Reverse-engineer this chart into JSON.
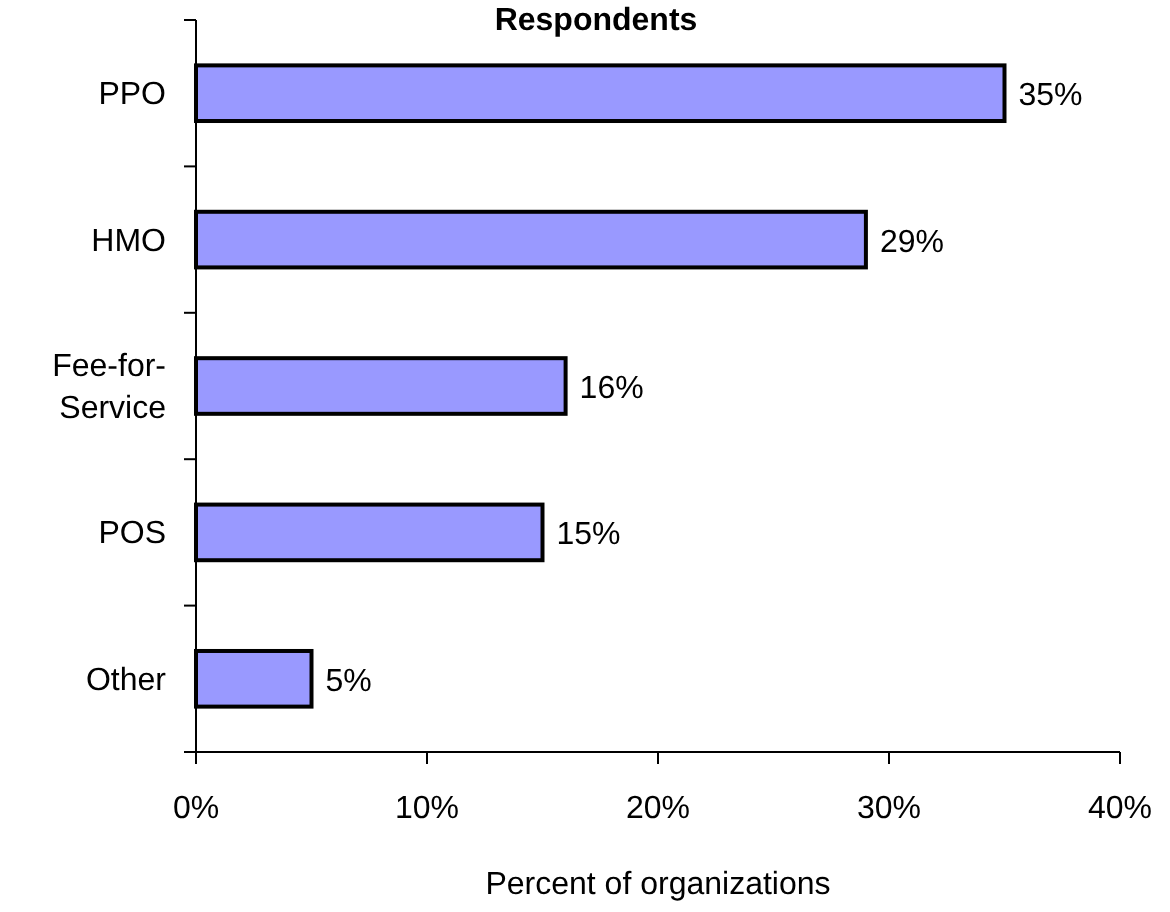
{
  "chart_data": {
    "type": "bar",
    "orientation": "horizontal",
    "title": "Respondents",
    "xlabel": "Percent of organizations",
    "categories": [
      "PPO",
      "HMO",
      "Fee-for-Service",
      "POS",
      "Other"
    ],
    "values": [
      35,
      29,
      16,
      15,
      5
    ],
    "value_labels": [
      "35%",
      "29%",
      "16%",
      "15%",
      "5%"
    ],
    "color": "#9999ff",
    "xlim": [
      0,
      40
    ],
    "xticks": [
      {
        "value": 0,
        "label": "0%"
      },
      {
        "value": 10,
        "label": "10%"
      },
      {
        "value": 20,
        "label": "20%"
      },
      {
        "value": 30,
        "label": "30%"
      },
      {
        "value": 40,
        "label": "40%"
      }
    ],
    "grid": false
  }
}
